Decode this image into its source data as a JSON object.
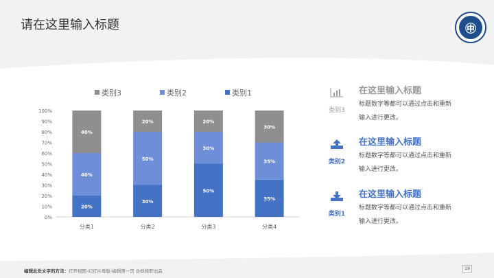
{
  "header": {
    "title": "请在这里输入标题"
  },
  "chart_data": {
    "type": "bar",
    "stacked": true,
    "percent": true,
    "categories": [
      "分类1",
      "分类2",
      "分类3",
      "分类4"
    ],
    "series": [
      {
        "name": "类别1",
        "values": [
          20,
          30,
          50,
          35
        ],
        "color": "#4472C4"
      },
      {
        "name": "类别2",
        "values": [
          40,
          50,
          30,
          35
        ],
        "color": "#6E8FD8"
      },
      {
        "name": "类别3",
        "values": [
          40,
          20,
          20,
          30
        ],
        "color": "#8F8F8F"
      }
    ],
    "legend_order": [
      "类别3",
      "类别2",
      "类别1"
    ],
    "legend_position": "top",
    "ylim": [
      0,
      100
    ],
    "yticks": [
      "0%",
      "10%",
      "20%",
      "30%",
      "40%",
      "50%",
      "60%",
      "70%",
      "80%",
      "90%",
      "100%"
    ],
    "grid": false
  },
  "side": [
    {
      "icon": "bar-chart-icon",
      "category": "类别3",
      "title": "在这里输入标题",
      "text": "标题数字等都可以通过点击和重新输入进行更改。",
      "color": "#9a9a9a"
    },
    {
      "icon": "upload-icon",
      "category": "类别2",
      "title": "在这里输入标题",
      "text": "标题数字等都可以通过点击和重新输入进行更改。",
      "color": "#4472C4"
    },
    {
      "icon": "download-icon",
      "category": "类别1",
      "title": "在这里输入标题",
      "text": "标题数字等都可以通过点击和重新输入进行更改。",
      "color": "#4472C4"
    }
  ],
  "footer": {
    "label": "编辑此处文字的方法：",
    "text": "打开视图-幻灯片母版-编辑第一页 @妖娆职出品",
    "page": "19"
  }
}
